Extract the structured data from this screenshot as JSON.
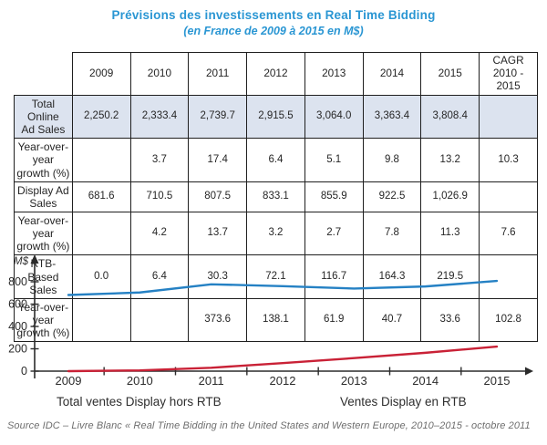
{
  "title": {
    "line1": "Prévisions des investissements en Real Time Bidding",
    "line2": "(en France de 2009 à 2015 en M$)"
  },
  "colors": {
    "accent_blue": "#2a96d3",
    "line_blue": "#2581c4",
    "line_red": "#c92136",
    "row_highlight": "#dce3ef",
    "table_border": "#1f1f1f",
    "axis": "#2b2b2b",
    "source_gray": "#6e6e6e"
  },
  "table": {
    "columns": [
      "",
      "2009",
      "2010",
      "2011",
      "2012",
      "2013",
      "2014",
      "2015",
      "CAGR\n2010 - 2015"
    ],
    "rows": [
      {
        "label": "Total Online\nAd Sales",
        "highlight": true,
        "values": [
          "2,250.2",
          "2,333.4",
          "2,739.7",
          "2,915.5",
          "3,064.0",
          "3,363.4",
          "3,808.4",
          ""
        ]
      },
      {
        "label": "Year-over-year\ngrowth (%)",
        "highlight": false,
        "values": [
          "",
          "3.7",
          "17.4",
          "6.4",
          "5.1",
          "9.8",
          "13.2",
          "10.3"
        ]
      },
      {
        "label": "Display Ad Sales",
        "highlight": false,
        "values": [
          "681.6",
          "710.5",
          "807.5",
          "833.1",
          "855.9",
          "922.5",
          "1,026.9",
          ""
        ]
      },
      {
        "label": "Year-over-year\ngrowth (%)",
        "highlight": false,
        "values": [
          "",
          "4.2",
          "13.7",
          "3.2",
          "2.7",
          "7.8",
          "11.3",
          "7.6"
        ]
      },
      {
        "label": "RTB-Based Sales",
        "highlight": false,
        "values": [
          "0.0",
          "6.4",
          "30.3",
          "72.1",
          "116.7",
          "164.3",
          "219.5",
          ""
        ]
      },
      {
        "label": "Year-over-year\ngrowth (%)",
        "highlight": false,
        "values": [
          "",
          "",
          "373.6",
          "138.1",
          "61.9",
          "40.7",
          "33.6",
          "102.8"
        ]
      }
    ]
  },
  "chart_data": {
    "type": "line",
    "title": "Prévisions des investissements en Real Time Bidding (en France de 2009 à 2015 en M$)",
    "categories": [
      "2009",
      "2010",
      "2011",
      "2012",
      "2013",
      "2014",
      "2015"
    ],
    "series": [
      {
        "name": "Total ventes Display hors RTB",
        "color": "#2581c4",
        "values": [
          681.6,
          704.1,
          777.2,
          761.0,
          739.2,
          758.2,
          807.4
        ]
      },
      {
        "name": "Ventes Display en RTB",
        "color": "#c92136",
        "values": [
          0.0,
          6.4,
          30.3,
          72.1,
          116.7,
          164.3,
          219.5
        ]
      }
    ],
    "xlabel": "",
    "ylabel": "M$",
    "ylim": [
      0,
      900
    ],
    "yticks": [
      0,
      200,
      400,
      600,
      800
    ],
    "grid": false,
    "legend_position": "bottom"
  },
  "legend": {
    "left": "Total ventes Display hors RTB",
    "right": "Ventes Display en RTB"
  },
  "source": "Source IDC – Livre Blanc « Real Time Bidding in the United States and Western Europe, 2010–2015 - octobre 2011"
}
